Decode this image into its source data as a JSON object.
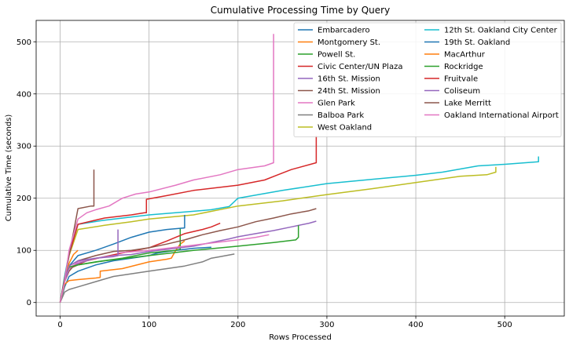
{
  "chart_data": {
    "type": "line",
    "title": "Cumulative Processing Time by Query",
    "xlabel": "Rows Processed",
    "ylabel": "Cumulative Time (seconds)",
    "xlim": [
      -27,
      567
    ],
    "ylim": [
      -26,
      541
    ],
    "xticks": [
      0,
      100,
      200,
      300,
      400,
      500
    ],
    "yticks": [
      0,
      100,
      200,
      300,
      400,
      500
    ],
    "grid": true,
    "legend_position": "top-right",
    "legend_columns": 2,
    "series": [
      {
        "name": "Embarcadero",
        "color": "#1f77b4",
        "points": [
          [
            0,
            0
          ],
          [
            5,
            30
          ],
          [
            10,
            50
          ],
          [
            20,
            60
          ],
          [
            40,
            72
          ],
          [
            60,
            80
          ],
          [
            80,
            85
          ],
          [
            100,
            90
          ],
          [
            110,
            95
          ],
          [
            130,
            100
          ],
          [
            150,
            104
          ],
          [
            170,
            106
          ]
        ]
      },
      {
        "name": "Montgomery St.",
        "color": "#ff7f0e",
        "points": [
          [
            0,
            0
          ],
          [
            5,
            35
          ],
          [
            10,
            42
          ],
          [
            20,
            44
          ],
          [
            40,
            47
          ],
          [
            45,
            48
          ],
          [
            45,
            60
          ],
          [
            70,
            65
          ],
          [
            100,
            78
          ],
          [
            120,
            83
          ],
          [
            125,
            85
          ],
          [
            130,
            100
          ],
          [
            135,
            112
          ],
          [
            140,
            118
          ]
        ]
      },
      {
        "name": "Powell St.",
        "color": "#2ca02c",
        "points": [
          [
            0,
            0
          ],
          [
            5,
            45
          ],
          [
            10,
            65
          ],
          [
            20,
            72
          ],
          [
            40,
            78
          ],
          [
            70,
            85
          ],
          [
            100,
            95
          ],
          [
            130,
            100
          ],
          [
            135,
            102
          ],
          [
            135,
            125
          ],
          [
            135,
            142
          ]
        ]
      },
      {
        "name": "Civic Center/UN Plaza",
        "color": "#d62728",
        "points": [
          [
            0,
            0
          ],
          [
            5,
            45
          ],
          [
            10,
            65
          ],
          [
            30,
            80
          ],
          [
            50,
            88
          ],
          [
            70,
            95
          ],
          [
            100,
            105
          ],
          [
            120,
            118
          ],
          [
            130,
            125
          ],
          [
            140,
            132
          ],
          [
            160,
            140
          ],
          [
            170,
            145
          ],
          [
            180,
            152
          ]
        ]
      },
      {
        "name": "16th St. Mission",
        "color": "#9467bd",
        "points": [
          [
            0,
            0
          ],
          [
            5,
            40
          ],
          [
            10,
            65
          ],
          [
            20,
            75
          ],
          [
            40,
            85
          ],
          [
            60,
            90
          ],
          [
            80,
            92
          ],
          [
            100,
            98
          ],
          [
            120,
            102
          ],
          [
            150,
            108
          ],
          [
            170,
            115
          ],
          [
            190,
            122
          ],
          [
            200,
            126
          ],
          [
            220,
            132
          ],
          [
            240,
            138
          ],
          [
            260,
            145
          ],
          [
            280,
            152
          ],
          [
            288,
            156
          ]
        ]
      },
      {
        "name": "24th St. Mission",
        "color": "#8c564b",
        "points": [
          [
            0,
            0
          ],
          [
            5,
            40
          ],
          [
            10,
            60
          ],
          [
            20,
            80
          ],
          [
            40,
            90
          ],
          [
            60,
            98
          ],
          [
            80,
            100
          ],
          [
            100,
            105
          ],
          [
            120,
            112
          ],
          [
            140,
            120
          ],
          [
            160,
            130
          ],
          [
            180,
            138
          ],
          [
            200,
            145
          ],
          [
            220,
            155
          ],
          [
            240,
            162
          ],
          [
            260,
            170
          ],
          [
            280,
            176
          ],
          [
            288,
            180
          ]
        ]
      },
      {
        "name": "Glen Park",
        "color": "#e377c2",
        "points": [
          [
            0,
            0
          ],
          [
            5,
            40
          ],
          [
            10,
            65
          ],
          [
            20,
            78
          ],
          [
            40,
            85
          ],
          [
            65,
            90
          ],
          [
            65,
            95
          ],
          [
            100,
            100
          ],
          [
            150,
            110
          ],
          [
            200,
            120
          ],
          [
            220,
            125
          ],
          [
            235,
            130
          ]
        ]
      },
      {
        "name": "Balboa Park",
        "color": "#7f7f7f",
        "points": [
          [
            0,
            0
          ],
          [
            5,
            20
          ],
          [
            10,
            25
          ],
          [
            20,
            30
          ],
          [
            40,
            40
          ],
          [
            60,
            50
          ],
          [
            80,
            55
          ],
          [
            100,
            60
          ],
          [
            120,
            65
          ],
          [
            140,
            70
          ],
          [
            160,
            78
          ],
          [
            170,
            85
          ],
          [
            180,
            88
          ],
          [
            196,
            93
          ]
        ]
      },
      {
        "name": "West Oakland",
        "color": "#bcbd22",
        "points": [
          [
            0,
            0
          ],
          [
            5,
            45
          ],
          [
            10,
            90
          ],
          [
            20,
            140
          ],
          [
            50,
            148
          ],
          [
            80,
            155
          ],
          [
            100,
            160
          ],
          [
            150,
            168
          ],
          [
            200,
            185
          ],
          [
            250,
            195
          ],
          [
            300,
            207
          ],
          [
            350,
            218
          ],
          [
            400,
            230
          ],
          [
            450,
            242
          ],
          [
            480,
            245
          ],
          [
            490,
            250
          ],
          [
            490,
            260
          ]
        ]
      },
      {
        "name": "12th St. Oakland City Center",
        "color": "#17becf",
        "points": [
          [
            0,
            0
          ],
          [
            5,
            50
          ],
          [
            10,
            95
          ],
          [
            20,
            150
          ],
          [
            50,
            158
          ],
          [
            100,
            168
          ],
          [
            150,
            175
          ],
          [
            170,
            178
          ],
          [
            190,
            184
          ],
          [
            200,
            200
          ],
          [
            250,
            215
          ],
          [
            300,
            228
          ],
          [
            350,
            236
          ],
          [
            400,
            244
          ],
          [
            430,
            250
          ],
          [
            470,
            262
          ],
          [
            500,
            265
          ],
          [
            538,
            270
          ],
          [
            538,
            280
          ]
        ]
      },
      {
        "name": "19th St. Oakland",
        "color": "#1f77b4",
        "points": [
          [
            0,
            0
          ],
          [
            5,
            45
          ],
          [
            10,
            70
          ],
          [
            20,
            90
          ],
          [
            40,
            100
          ],
          [
            60,
            112
          ],
          [
            80,
            125
          ],
          [
            100,
            135
          ],
          [
            120,
            140
          ],
          [
            140,
            143
          ],
          [
            140,
            168
          ]
        ]
      },
      {
        "name": "MacArthur",
        "color": "#ff7f0e",
        "points": [
          [
            0,
            0
          ],
          [
            5,
            40
          ],
          [
            10,
            75
          ],
          [
            15,
            92
          ],
          [
            20,
            100
          ]
        ]
      },
      {
        "name": "Rockridge",
        "color": "#2ca02c",
        "points": [
          [
            0,
            0
          ],
          [
            5,
            45
          ],
          [
            10,
            68
          ],
          [
            20,
            72
          ],
          [
            50,
            80
          ],
          [
            100,
            90
          ],
          [
            150,
            100
          ],
          [
            200,
            108
          ],
          [
            240,
            115
          ],
          [
            265,
            120
          ],
          [
            268,
            125
          ],
          [
            268,
            148
          ]
        ]
      },
      {
        "name": "Fruitvale",
        "color": "#d62728",
        "points": [
          [
            0,
            0
          ],
          [
            5,
            45
          ],
          [
            10,
            92
          ],
          [
            20,
            150
          ],
          [
            50,
            162
          ],
          [
            80,
            168
          ],
          [
            95,
            172
          ],
          [
            97,
            172
          ],
          [
            97,
            198
          ],
          [
            120,
            205
          ],
          [
            150,
            215
          ],
          [
            200,
            225
          ],
          [
            230,
            235
          ],
          [
            245,
            245
          ],
          [
            260,
            255
          ],
          [
            288,
            268
          ],
          [
            288,
            320
          ]
        ]
      },
      {
        "name": "Coliseum",
        "color": "#9467bd",
        "points": [
          [
            0,
            0
          ],
          [
            5,
            40
          ],
          [
            10,
            70
          ],
          [
            20,
            80
          ],
          [
            40,
            85
          ],
          [
            60,
            88
          ],
          [
            65,
            90
          ],
          [
            65,
            140
          ]
        ]
      },
      {
        "name": "Lake Merritt",
        "color": "#8c564b",
        "points": [
          [
            0,
            0
          ],
          [
            5,
            45
          ],
          [
            10,
            90
          ],
          [
            20,
            180
          ],
          [
            35,
            185
          ],
          [
            38,
            185
          ],
          [
            38,
            255
          ]
        ]
      },
      {
        "name": "Oakland International Airport",
        "color": "#e377c2",
        "points": [
          [
            0,
            0
          ],
          [
            5,
            40
          ],
          [
            10,
            100
          ],
          [
            20,
            160
          ],
          [
            30,
            172
          ],
          [
            40,
            178
          ],
          [
            55,
            185
          ],
          [
            70,
            200
          ],
          [
            85,
            208
          ],
          [
            100,
            212
          ],
          [
            130,
            225
          ],
          [
            150,
            235
          ],
          [
            180,
            245
          ],
          [
            200,
            255
          ],
          [
            230,
            262
          ],
          [
            240,
            268
          ],
          [
            240,
            515
          ]
        ]
      }
    ]
  }
}
